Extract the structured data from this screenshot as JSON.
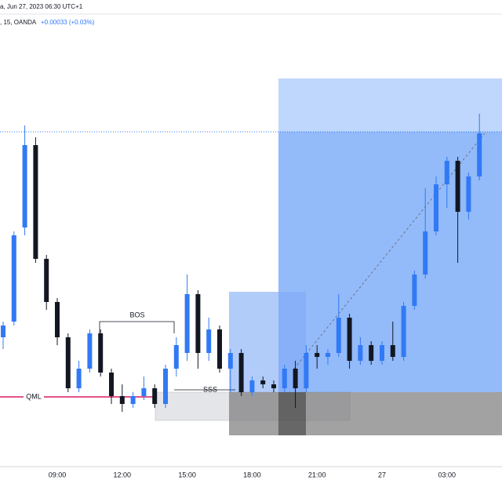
{
  "chart_data": {
    "type": "candlestick",
    "header": "a, Jun 27, 2023 06:30 UTC+1",
    "symbol_line": ", 15, OANDA",
    "change": "+0.00033 (+0.03%)",
    "categories": [
      null,
      null,
      null,
      null,
      null,
      "09:00",
      null,
      null,
      null,
      null,
      null,
      "12:00",
      null,
      null,
      null,
      null,
      null,
      "15:00",
      null,
      null,
      null,
      null,
      null,
      "18:00",
      null,
      null,
      null,
      null,
      null,
      "21:00",
      null,
      null,
      null,
      null,
      null,
      "27",
      null,
      null,
      null,
      null,
      null,
      "03:00",
      null,
      null,
      null
    ],
    "open": [
      34,
      38,
      62,
      83,
      54,
      43,
      34,
      21,
      26,
      35,
      25,
      19,
      17,
      19,
      21,
      17,
      26,
      30,
      45,
      30,
      36,
      26,
      30,
      20,
      23,
      22,
      21,
      26,
      21,
      30,
      29,
      30,
      39,
      28,
      32,
      28,
      32,
      29,
      42,
      50,
      61,
      73,
      79,
      66,
      75
    ],
    "high": [
      38,
      61,
      88,
      85,
      55,
      44,
      35,
      28,
      36,
      36,
      26,
      22,
      20,
      24,
      22,
      27,
      34,
      50,
      46,
      39,
      37,
      31,
      31,
      24,
      24,
      23,
      27,
      28,
      32,
      32,
      31,
      45,
      40,
      34,
      33,
      33,
      38,
      43,
      51,
      72,
      75,
      80,
      80,
      76,
      91
    ],
    "low": [
      31,
      37,
      60,
      53,
      41,
      32,
      20,
      20,
      25,
      24,
      17,
      15,
      16,
      18,
      16,
      16,
      24,
      28,
      26,
      28,
      25,
      20,
      19,
      19,
      21,
      20,
      20,
      16,
      20,
      26,
      27,
      29,
      26,
      27,
      27,
      27,
      28,
      28,
      41,
      49,
      60,
      67,
      53,
      64,
      74
    ],
    "close": [
      37,
      60,
      83,
      54,
      43,
      34,
      21,
      26,
      35,
      25,
      19,
      17,
      19,
      21,
      17,
      26,
      32,
      45,
      30,
      36,
      26,
      30,
      20,
      23,
      22,
      21,
      26,
      21,
      30,
      29,
      30,
      39,
      28,
      32,
      28,
      32,
      29,
      42,
      50,
      61,
      73,
      79,
      66,
      75,
      86
    ],
    "up_color": "#3179f5",
    "down_color": "#131722",
    "ylim": [
      0,
      120
    ],
    "annotations": [
      "BOS",
      "SSS",
      "QML"
    ]
  }
}
